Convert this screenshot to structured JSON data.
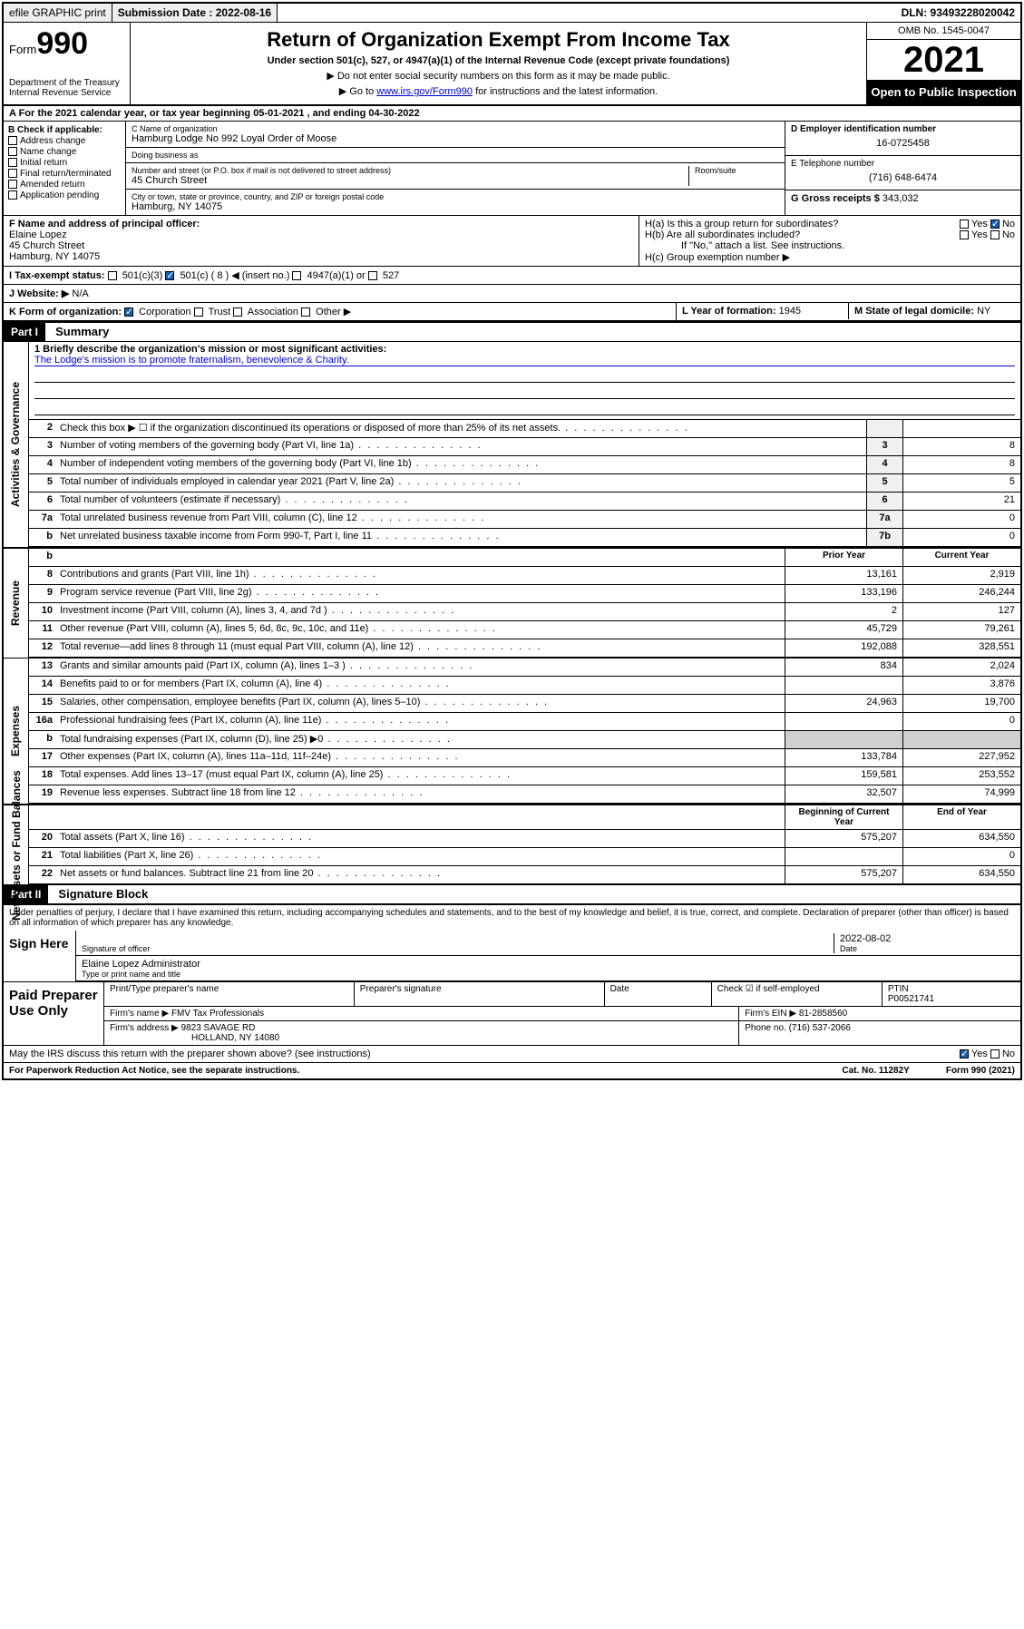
{
  "topbar": {
    "efile": "efile GRAPHIC print",
    "subdate_label": "Submission Date : 2022-08-16",
    "dln": "DLN: 93493228020042"
  },
  "header": {
    "form_prefix": "Form",
    "form_number": "990",
    "dept": "Department of the Treasury Internal Revenue Service",
    "title": "Return of Organization Exempt From Income Tax",
    "subtitle": "Under section 501(c), 527, or 4947(a)(1) of the Internal Revenue Code (except private foundations)",
    "note1": "▶ Do not enter social security numbers on this form as it may be made public.",
    "note2_pre": "▶ Go to ",
    "note2_link": "www.irs.gov/Form990",
    "note2_post": " for instructions and the latest information.",
    "omb": "OMB No. 1545-0047",
    "year": "2021",
    "openpublic": "Open to Public Inspection"
  },
  "row_a": "A For the 2021 calendar year, or tax year beginning 05-01-2021   , and ending 04-30-2022",
  "b": {
    "label": "B Check if applicable:",
    "items": [
      "Address change",
      "Name change",
      "Initial return",
      "Final return/terminated",
      "Amended return",
      "Application pending"
    ]
  },
  "c": {
    "name_label": "C Name of organization",
    "name": "Hamburg Lodge No 992 Loyal Order of Moose",
    "dba_label": "Doing business as",
    "addr_label": "Number and street (or P.O. box if mail is not delivered to street address)",
    "room_label": "Room/suite",
    "addr": "45 Church Street",
    "city_label": "City or town, state or province, country, and ZIP or foreign postal code",
    "city": "Hamburg, NY  14075"
  },
  "d": {
    "ein_label": "D Employer identification number",
    "ein": "16-0725458",
    "phone_label": "E Telephone number",
    "phone": "(716) 648-6474",
    "gross_label": "G Gross receipts $",
    "gross": "343,032"
  },
  "f": {
    "label": "F  Name and address of principal officer:",
    "name": "Elaine Lopez",
    "addr1": "45 Church Street",
    "addr2": "Hamburg, NY  14075"
  },
  "h": {
    "ha": "H(a)  Is this a group return for subordinates?",
    "hb": "H(b)  Are all subordinates included?",
    "hb_note": "If \"No,\" attach a list. See instructions.",
    "hc": "H(c)  Group exemption number ▶",
    "yes": "Yes",
    "no": "No"
  },
  "i": {
    "label": "I   Tax-exempt status:",
    "opt1": "501(c)(3)",
    "opt2": "501(c) ( 8 ) ◀ (insert no.)",
    "opt3": "4947(a)(1) or",
    "opt4": "527"
  },
  "j": {
    "label": "J   Website: ▶",
    "val": "N/A"
  },
  "k": {
    "label": "K Form of organization:",
    "opts": [
      "Corporation",
      "Trust",
      "Association",
      "Other ▶"
    ]
  },
  "l": {
    "label": "L Year of formation:",
    "val": "1945"
  },
  "m": {
    "label": "M State of legal domicile:",
    "val": "NY"
  },
  "part1": {
    "header": "Part I",
    "title": "Summary"
  },
  "mission": {
    "q": "1  Briefly describe the organization's mission or most significant activities:",
    "text": "The Lodge's mission is to promote fraternalism, benevolence & Charity."
  },
  "gov_rows": [
    {
      "n": "2",
      "d": "Check this box ▶ ☐  if the organization discontinued its operations or disposed of more than 25% of its net assets.",
      "c": "",
      "v": ""
    },
    {
      "n": "3",
      "d": "Number of voting members of the governing body (Part VI, line 1a)",
      "c": "3",
      "v": "8"
    },
    {
      "n": "4",
      "d": "Number of independent voting members of the governing body (Part VI, line 1b)",
      "c": "4",
      "v": "8"
    },
    {
      "n": "5",
      "d": "Total number of individuals employed in calendar year 2021 (Part V, line 2a)",
      "c": "5",
      "v": "5"
    },
    {
      "n": "6",
      "d": "Total number of volunteers (estimate if necessary)",
      "c": "6",
      "v": "21"
    },
    {
      "n": "7a",
      "d": "Total unrelated business revenue from Part VIII, column (C), line 12",
      "c": "7a",
      "v": "0"
    },
    {
      "n": "b",
      "d": "Net unrelated business taxable income from Form 990-T, Part I, line 11",
      "c": "7b",
      "v": "0"
    }
  ],
  "rev_header": {
    "prior": "Prior Year",
    "current": "Current Year"
  },
  "rev_rows": [
    {
      "n": "8",
      "d": "Contributions and grants (Part VIII, line 1h)",
      "p": "13,161",
      "c": "2,919"
    },
    {
      "n": "9",
      "d": "Program service revenue (Part VIII, line 2g)",
      "p": "133,196",
      "c": "246,244"
    },
    {
      "n": "10",
      "d": "Investment income (Part VIII, column (A), lines 3, 4, and 7d )",
      "p": "2",
      "c": "127"
    },
    {
      "n": "11",
      "d": "Other revenue (Part VIII, column (A), lines 5, 6d, 8c, 9c, 10c, and 11e)",
      "p": "45,729",
      "c": "79,261"
    },
    {
      "n": "12",
      "d": "Total revenue—add lines 8 through 11 (must equal Part VIII, column (A), line 12)",
      "p": "192,088",
      "c": "328,551"
    }
  ],
  "exp_rows": [
    {
      "n": "13",
      "d": "Grants and similar amounts paid (Part IX, column (A), lines 1–3 )",
      "p": "834",
      "c": "2,024"
    },
    {
      "n": "14",
      "d": "Benefits paid to or for members (Part IX, column (A), line 4)",
      "p": "",
      "c": "3,876"
    },
    {
      "n": "15",
      "d": "Salaries, other compensation, employee benefits (Part IX, column (A), lines 5–10)",
      "p": "24,963",
      "c": "19,700"
    },
    {
      "n": "16a",
      "d": "Professional fundraising fees (Part IX, column (A), line 11e)",
      "p": "",
      "c": "0"
    },
    {
      "n": "b",
      "d": "Total fundraising expenses (Part IX, column (D), line 25) ▶0",
      "p": "shaded",
      "c": "shaded"
    },
    {
      "n": "17",
      "d": "Other expenses (Part IX, column (A), lines 11a–11d, 11f–24e)",
      "p": "133,784",
      "c": "227,952"
    },
    {
      "n": "18",
      "d": "Total expenses. Add lines 13–17 (must equal Part IX, column (A), line 25)",
      "p": "159,581",
      "c": "253,552"
    },
    {
      "n": "19",
      "d": "Revenue less expenses. Subtract line 18 from line 12",
      "p": "32,507",
      "c": "74,999"
    }
  ],
  "net_header": {
    "beg": "Beginning of Current Year",
    "end": "End of Year"
  },
  "net_rows": [
    {
      "n": "20",
      "d": "Total assets (Part X, line 16)",
      "p": "575,207",
      "c": "634,550"
    },
    {
      "n": "21",
      "d": "Total liabilities (Part X, line 26)",
      "p": "",
      "c": "0"
    },
    {
      "n": "22",
      "d": "Net assets or fund balances. Subtract line 21 from line 20",
      "p": "575,207",
      "c": "634,550"
    }
  ],
  "vlabels": {
    "gov": "Activities & Governance",
    "rev": "Revenue",
    "exp": "Expenses",
    "net": "Net Assets or Fund Balances"
  },
  "part2": {
    "header": "Part II",
    "title": "Signature Block"
  },
  "penalty": "Under penalties of perjury, I declare that I have examined this return, including accompanying schedules and statements, and to the best of my knowledge and belief, it is true, correct, and complete. Declaration of preparer (other than officer) is based on all information of which preparer has any knowledge.",
  "sign": {
    "here": "Sign Here",
    "sig_officer": "Signature of officer",
    "date_label": "Date",
    "date": "2022-08-02",
    "name": "Elaine Lopez Administrator",
    "name_label": "Type or print name and title"
  },
  "paid": {
    "label": "Paid Preparer Use Only",
    "print_label": "Print/Type preparer's name",
    "sig_label": "Preparer's signature",
    "date_label": "Date",
    "check_label": "Check ☑ if self-employed",
    "ptin_label": "PTIN",
    "ptin": "P00521741",
    "firm_name_label": "Firm's name    ▶",
    "firm_name": "FMV Tax Professionals",
    "firm_ein_label": "Firm's EIN ▶",
    "firm_ein": "81-2858560",
    "firm_addr_label": "Firm's address ▶",
    "firm_addr1": "9823 SAVAGE RD",
    "firm_addr2": "HOLLAND, NY  14080",
    "phone_label": "Phone no.",
    "phone": "(716) 537-2066"
  },
  "discuss": "May the IRS discuss this return with the preparer shown above? (see instructions)",
  "footer": {
    "left": "For Paperwork Reduction Act Notice, see the separate instructions.",
    "mid": "Cat. No. 11282Y",
    "right": "Form 990 (2021)"
  }
}
